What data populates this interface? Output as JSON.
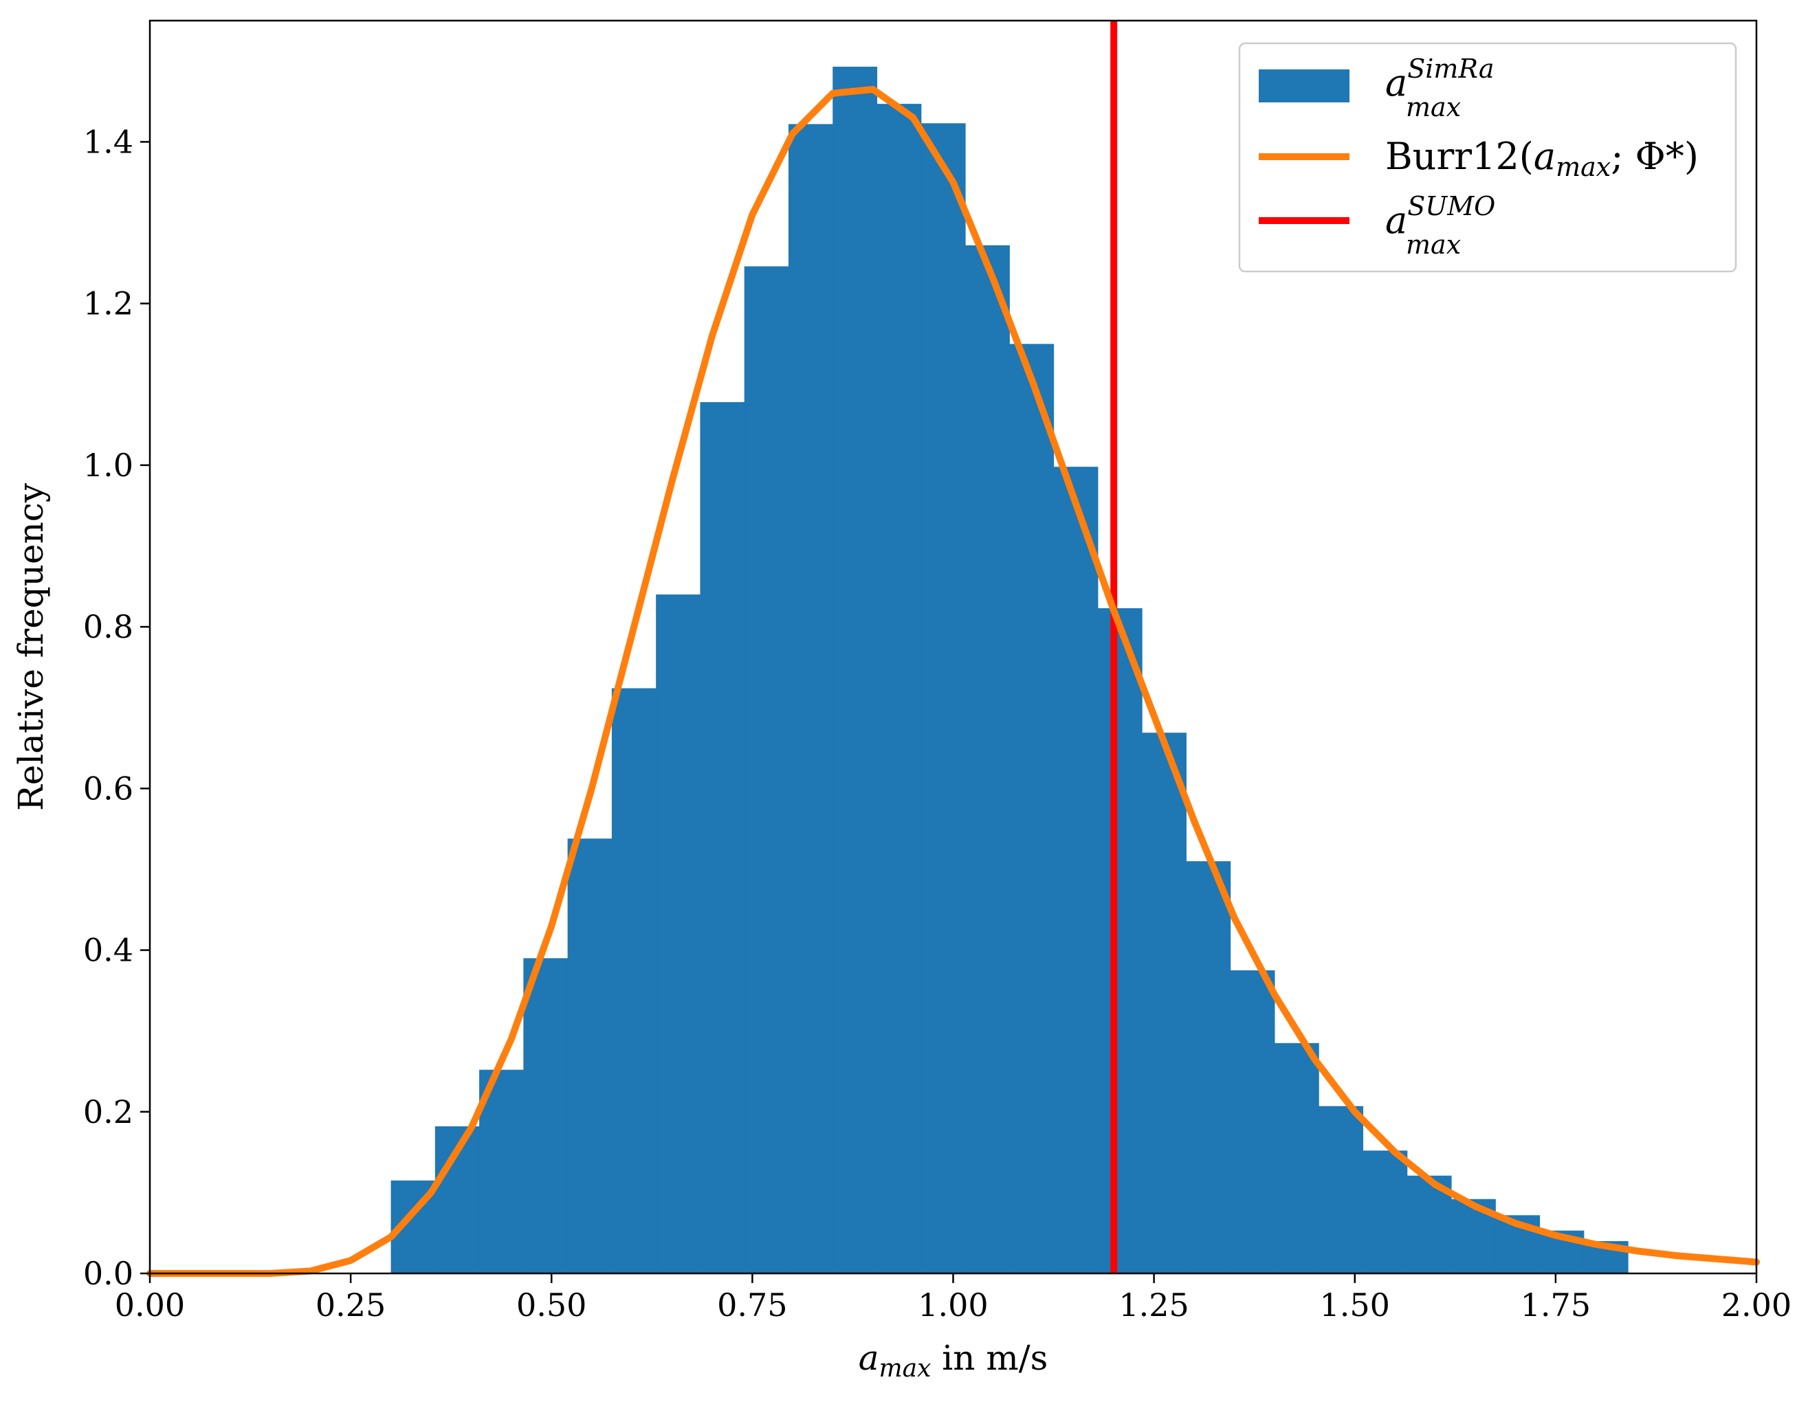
{
  "chart_data": {
    "type": "bar",
    "xlabel": {
      "main": "a",
      "sub": "max",
      "rest": " in m/s"
    },
    "ylabel": "Relative frequency",
    "xlim": [
      0.0,
      2.0
    ],
    "ylim": [
      0.0,
      1.55
    ],
    "xticks": [
      "0.00",
      "0.25",
      "0.50",
      "0.75",
      "1.00",
      "1.25",
      "1.50",
      "1.75",
      "2.00"
    ],
    "yticks": [
      "0.0",
      "0.2",
      "0.4",
      "0.6",
      "0.8",
      "1.0",
      "1.2",
      "1.4"
    ],
    "grid": false,
    "legend_position": "top-right",
    "histogram": {
      "bin_edges": [
        0.3,
        0.355,
        0.41,
        0.465,
        0.52,
        0.575,
        0.63,
        0.685,
        0.74,
        0.795,
        0.85,
        0.905,
        0.96,
        1.015,
        1.07,
        1.125,
        1.18,
        1.235,
        1.29,
        1.345,
        1.4,
        1.455,
        1.51,
        1.565,
        1.62,
        1.675,
        1.73,
        1.785
      ],
      "values": [
        0.115,
        0.182,
        0.252,
        0.39,
        0.538,
        0.724,
        0.84,
        1.078,
        1.246,
        1.422,
        1.493,
        1.447,
        1.423,
        1.272,
        1.15,
        0.998,
        0.823,
        0.669,
        0.51,
        0.375,
        0.285,
        0.207,
        0.152,
        0.121,
        0.092,
        0.072,
        0.053,
        0.04
      ],
      "color": "#1f77b4"
    },
    "curve": {
      "x": [
        0.0,
        0.05,
        0.1,
        0.15,
        0.2,
        0.25,
        0.3,
        0.35,
        0.4,
        0.45,
        0.5,
        0.55,
        0.6,
        0.65,
        0.7,
        0.75,
        0.8,
        0.85,
        0.9,
        0.95,
        1.0,
        1.05,
        1.1,
        1.15,
        1.2,
        1.25,
        1.3,
        1.35,
        1.4,
        1.45,
        1.5,
        1.55,
        1.6,
        1.65,
        1.7,
        1.75,
        1.8,
        1.85,
        1.9,
        1.95,
        2.0
      ],
      "y": [
        0.0,
        0.0,
        0.0,
        0.0,
        0.003,
        0.016,
        0.045,
        0.1,
        0.18,
        0.29,
        0.43,
        0.6,
        0.79,
        0.98,
        1.16,
        1.31,
        1.41,
        1.46,
        1.465,
        1.43,
        1.35,
        1.23,
        1.1,
        0.96,
        0.82,
        0.69,
        0.56,
        0.44,
        0.345,
        0.265,
        0.2,
        0.15,
        0.11,
        0.083,
        0.062,
        0.047,
        0.036,
        0.028,
        0.022,
        0.018,
        0.014
      ],
      "color": "#ff7f0e"
    },
    "vline": {
      "x": 1.2,
      "color": "#ff0000"
    },
    "legend": [
      {
        "kind": "patch",
        "color": "#1f77b4",
        "main": "a",
        "sup": "SimRa",
        "sub": "max"
      },
      {
        "kind": "line",
        "color": "#ff7f0e",
        "text": "Burr12(",
        "arg_main": "a",
        "arg_sub": "max",
        "tail": "; Φ*)"
      },
      {
        "kind": "line",
        "color": "#ff0000",
        "main": "a",
        "sup": "SUMO",
        "sub": "max"
      }
    ]
  }
}
